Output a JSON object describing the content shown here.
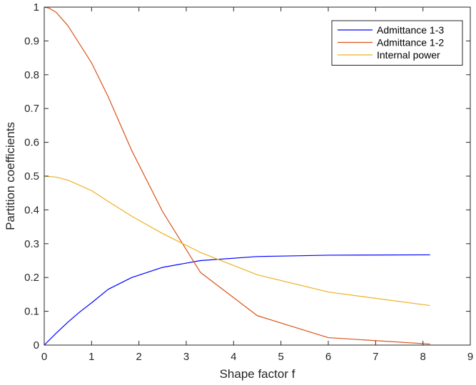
{
  "chart_data": {
    "type": "line",
    "title": "",
    "xlabel": "Shape factor f",
    "ylabel": "Partition coefficients",
    "xlim": [
      0,
      9
    ],
    "ylim": [
      0,
      1
    ],
    "xticks": [
      "0",
      "1",
      "2",
      "3",
      "4",
      "5",
      "6",
      "7",
      "8",
      "9"
    ],
    "yticks": [
      "0",
      "0.1",
      "0.2",
      "0.3",
      "0.4",
      "0.5",
      "0.6",
      "0.7",
      "0.8",
      "0.9",
      "1"
    ],
    "grid": false,
    "legend_position": "top-right",
    "series": [
      {
        "name": "Admittance 1-3",
        "color": "#0000ff",
        "x": [
          0,
          0.25,
          0.5,
          0.75,
          1.0,
          1.35,
          1.85,
          2.5,
          3.3,
          4.5,
          6.0,
          8.15
        ],
        "y": [
          0,
          0.035,
          0.068,
          0.098,
          0.125,
          0.165,
          0.2,
          0.23,
          0.25,
          0.262,
          0.266,
          0.267
        ]
      },
      {
        "name": "Admittance 1-2",
        "color": "#d95319",
        "x": [
          0,
          0.1,
          0.25,
          0.5,
          1.0,
          1.35,
          1.85,
          2.5,
          3.3,
          4.5,
          6.0,
          8.15
        ],
        "y": [
          1.0,
          0.997,
          0.985,
          0.945,
          0.835,
          0.735,
          0.575,
          0.395,
          0.215,
          0.087,
          0.022,
          0.003
        ]
      },
      {
        "name": "Internal power",
        "color": "#edb120",
        "x": [
          0,
          0.25,
          0.5,
          1.0,
          1.35,
          1.85,
          2.5,
          3.3,
          4.5,
          6.0,
          8.15
        ],
        "y": [
          0.5,
          0.497,
          0.488,
          0.457,
          0.425,
          0.381,
          0.33,
          0.274,
          0.208,
          0.157,
          0.117
        ]
      }
    ]
  }
}
